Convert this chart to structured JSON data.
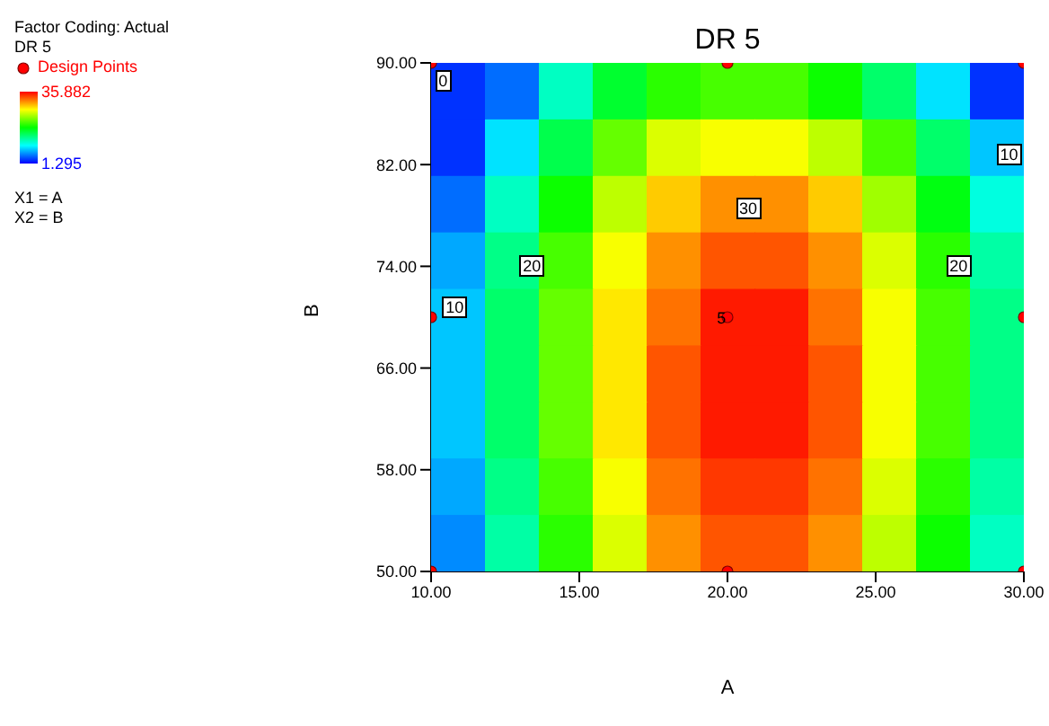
{
  "chart_data": {
    "type": "heatmap",
    "title": "DR 5",
    "xlabel": "A",
    "ylabel": "B",
    "clabel": "DR 5",
    "xlim": [
      10,
      30
    ],
    "ylim": [
      50,
      90
    ],
    "xticks": [
      {
        "value": 10,
        "label": "10.00"
      },
      {
        "value": 15,
        "label": "15.00"
      },
      {
        "value": 20,
        "label": "20.00"
      },
      {
        "value": 25,
        "label": "25.00"
      },
      {
        "value": 30,
        "label": "30.00"
      }
    ],
    "yticks": [
      {
        "value": 50,
        "label": "50.00"
      },
      {
        "value": 58,
        "label": "58.00"
      },
      {
        "value": 66,
        "label": "66.00"
      },
      {
        "value": 74,
        "label": "74.00"
      },
      {
        "value": 82,
        "label": "82.00"
      },
      {
        "value": 90,
        "label": "90.00"
      }
    ],
    "clim": [
      1.295,
      35.882
    ],
    "cticks": [
      {
        "value": 1.295,
        "label": "1.295"
      },
      {
        "value": 35.882,
        "label": "35.882"
      }
    ],
    "cells": [
      [
        3,
        5,
        12,
        17,
        20,
        21,
        21,
        19,
        15,
        9,
        3
      ],
      [
        3,
        9,
        16,
        22,
        26,
        27,
        27,
        25,
        21,
        15,
        8
      ],
      [
        5,
        12,
        19,
        25,
        29,
        31,
        31,
        29,
        24,
        18,
        11
      ],
      [
        7,
        14,
        21,
        27,
        31,
        33,
        33,
        31,
        26,
        20,
        13
      ],
      [
        8,
        15,
        22,
        28,
        32,
        35,
        35,
        32,
        27,
        21,
        14
      ],
      [
        8,
        15,
        22,
        28,
        33,
        35,
        35,
        33,
        27,
        21,
        14
      ],
      [
        8,
        15,
        22,
        28,
        33,
        35,
        35,
        33,
        27,
        21,
        14
      ],
      [
        7,
        14,
        21,
        27,
        32,
        34,
        34,
        32,
        26,
        20,
        13
      ],
      [
        6,
        13,
        20,
        26,
        31,
        33,
        33,
        31,
        25,
        19,
        12
      ]
    ],
    "series": [
      {
        "type": "scatter",
        "name": "Design Points",
        "color": "#ff0000",
        "x": [
          10,
          20,
          30,
          10,
          20,
          30,
          10,
          20,
          30
        ],
        "values": [
          90,
          90,
          90,
          70,
          70,
          70,
          50,
          50,
          50
        ]
      }
    ],
    "marker": "circle",
    "legend": "left",
    "grid": false,
    "annotations": [
      "Factor Coding: Actual",
      "X1 = A",
      "X2 = B",
      "0",
      "10",
      "20",
      "30",
      "20",
      "10",
      "5"
    ]
  }
}
